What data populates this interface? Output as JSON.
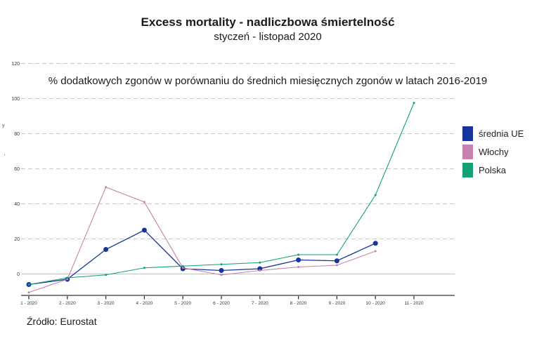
{
  "title": "Excess mortality - nadliczbowa śmiertelność",
  "subtitle": "styczeń - listopad 2020",
  "annotation": "% dodatkowych zgonów w porównaniu do średnich miesięcznych zgonów w latach 2016-2019",
  "source": "Źródło: Eurostat",
  "y_axis_marks": [
    "y",
    "'"
  ],
  "chart_data": {
    "type": "line",
    "title": "Excess mortality - nadliczbowa śmiertelność",
    "subtitle": "styczeń - listopad 2020",
    "x_labels": [
      "1 - 2020",
      "2 - 2020",
      "3 - 2020",
      "4 - 2020",
      "5 - 2020",
      "6 - 2020",
      "7 - 2020",
      "8 - 2020",
      "9 - 2020",
      "10 - 2020",
      "11 - 2020"
    ],
    "yticks": [
      0,
      20,
      40,
      60,
      80,
      100,
      120
    ],
    "ylim": [
      -15,
      128
    ],
    "grid": "horizontal-dashed",
    "legend_position": "right",
    "series": [
      {
        "name": "średnia UE",
        "color": "#16339E",
        "marker": "circle-large",
        "values": [
          -6,
          -3,
          14,
          25,
          3,
          2,
          3,
          8,
          7.5,
          17.5,
          null
        ]
      },
      {
        "name": "Włochy",
        "color": "#C781AD",
        "marker": "circle-small",
        "values": [
          -10.5,
          -3,
          49.5,
          41,
          3.5,
          -0.5,
          2,
          4,
          5,
          13,
          null
        ]
      },
      {
        "name": "Polska",
        "color": "#12A276",
        "marker": "circle-small",
        "values": [
          -6,
          -2.2,
          -0.5,
          3.5,
          4.5,
          5.5,
          6.5,
          11,
          11,
          45,
          97.5
        ]
      }
    ]
  }
}
